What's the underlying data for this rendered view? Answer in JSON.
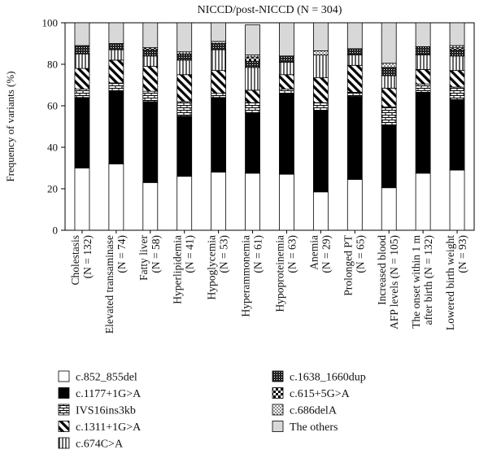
{
  "chart_data": {
    "type": "bar",
    "stacked": true,
    "title": "NICCD/post-NICCD (N = 304)",
    "ylabel": "Frequency of variants (%)",
    "xlabel": "",
    "ylim": [
      0,
      100
    ],
    "yticks": [
      0,
      20,
      40,
      60,
      80,
      100
    ],
    "grid": false,
    "legend_position": "bottom",
    "categories": [
      [
        "Cholestasis",
        "(N = 132)"
      ],
      [
        "Elevated transaminase",
        "(N = 74)"
      ],
      [
        "Fatty liver",
        "(N = 58)"
      ],
      [
        "Hyperlipidemia",
        "(N = 41)"
      ],
      [
        "Hypoglycemia",
        "(N = 53)"
      ],
      [
        "Hyperammonemia",
        "(N = 61)"
      ],
      [
        "Hypoproteinemia",
        "(N = 63)"
      ],
      [
        "Anemia",
        "(N = 29)"
      ],
      [
        "Prolonged PT",
        "(N = 65)"
      ],
      [
        "Increased blood",
        "AFP levels (N = 105)"
      ],
      [
        "The onset within 1 m",
        "after birth (N = 132)"
      ],
      [
        "Lowered birth weight",
        "(N = 93)"
      ]
    ],
    "series": [
      {
        "name": "c.852_855del",
        "pattern": "white",
        "values": [
          30,
          32,
          23,
          26,
          28,
          27.5,
          27,
          18.5,
          24.5,
          20.5,
          27.5,
          29
        ]
      },
      {
        "name": "c.1177+1G>A",
        "pattern": "black",
        "values": [
          34,
          35,
          39,
          29,
          36,
          29,
          39,
          39,
          40,
          30,
          39,
          34
        ]
      },
      {
        "name": "IVS16ins3kb",
        "pattern": "brick",
        "values": [
          4,
          4,
          5,
          7,
          2,
          5,
          2,
          4,
          2,
          9,
          4,
          6
        ]
      },
      {
        "name": "c.1311+1G>A",
        "pattern": "diagonal",
        "values": [
          10,
          11,
          12,
          13,
          11,
          6,
          7,
          12,
          13,
          9,
          7,
          8
        ]
      },
      {
        "name": "c.674C>A",
        "pattern": "vertical",
        "values": [
          7,
          5,
          5,
          7,
          10,
          11,
          6,
          11,
          5,
          6,
          7,
          7
        ]
      },
      {
        "name": "c.1638_1660dup",
        "pattern": "dense-dots",
        "values": [
          4,
          3,
          3,
          3,
          3,
          3,
          3,
          0,
          3,
          4,
          4,
          3
        ]
      },
      {
        "name": "c.615+5G>A",
        "pattern": "checker",
        "values": [
          0,
          0,
          1,
          0,
          0,
          2,
          0,
          0,
          0,
          0,
          0,
          1
        ]
      },
      {
        "name": "c.686delA",
        "pattern": "sparse-dots",
        "values": [
          0,
          0,
          0,
          1,
          1,
          1,
          0,
          2,
          0,
          2,
          0,
          1
        ]
      },
      {
        "name": "The others",
        "pattern": "gray",
        "values": [
          11,
          10,
          12,
          14,
          9,
          14.5,
          16,
          13.5,
          12.5,
          19.5,
          11.5,
          11
        ]
      }
    ]
  },
  "colors": {
    "stroke": "#000000",
    "gray": "#d8d8d8",
    "background": "#ffffff"
  }
}
